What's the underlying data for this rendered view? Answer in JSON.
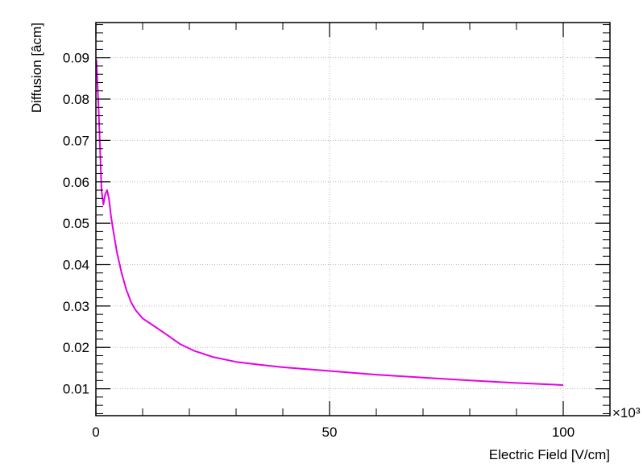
{
  "chart_data": {
    "type": "line",
    "xlabel": "Electric Field [V/cm]",
    "ylabel": "Diffusion [âcm]",
    "x_multiplier_label": "×10³",
    "xlim": [
      0,
      110
    ],
    "ylim": [
      0.0035,
      0.0985
    ],
    "x_ticks": [
      0,
      50,
      100
    ],
    "x_tick_labels": [
      "0",
      "50",
      "100"
    ],
    "y_ticks": [
      0.01,
      0.02,
      0.03,
      0.04,
      0.05,
      0.06,
      0.07,
      0.08,
      0.09
    ],
    "y_tick_labels": [
      "0.01",
      "0.02",
      "0.03",
      "0.04",
      "0.05",
      "0.06",
      "0.07",
      "0.08",
      "0.09"
    ],
    "grid": true,
    "series": [
      {
        "color": "#e600e6",
        "x": [
          0.1,
          0.3,
          0.6,
          0.9,
          1.2,
          1.6,
          2.0,
          2.4,
          2.8,
          3.2,
          3.6,
          4.5,
          5.5,
          6.5,
          7.5,
          8.5,
          10,
          12,
          15,
          18,
          21,
          25,
          30,
          35,
          40,
          50,
          60,
          70,
          80,
          90,
          100
        ],
        "y": [
          0.0895,
          0.085,
          0.077,
          0.068,
          0.058,
          0.0545,
          0.057,
          0.058,
          0.056,
          0.052,
          0.049,
          0.043,
          0.038,
          0.034,
          0.031,
          0.029,
          0.027,
          0.0255,
          0.0232,
          0.0208,
          0.0192,
          0.0177,
          0.0165,
          0.0158,
          0.0152,
          0.0143,
          0.0134,
          0.0127,
          0.012,
          0.0114,
          0.0109
        ]
      }
    ]
  }
}
